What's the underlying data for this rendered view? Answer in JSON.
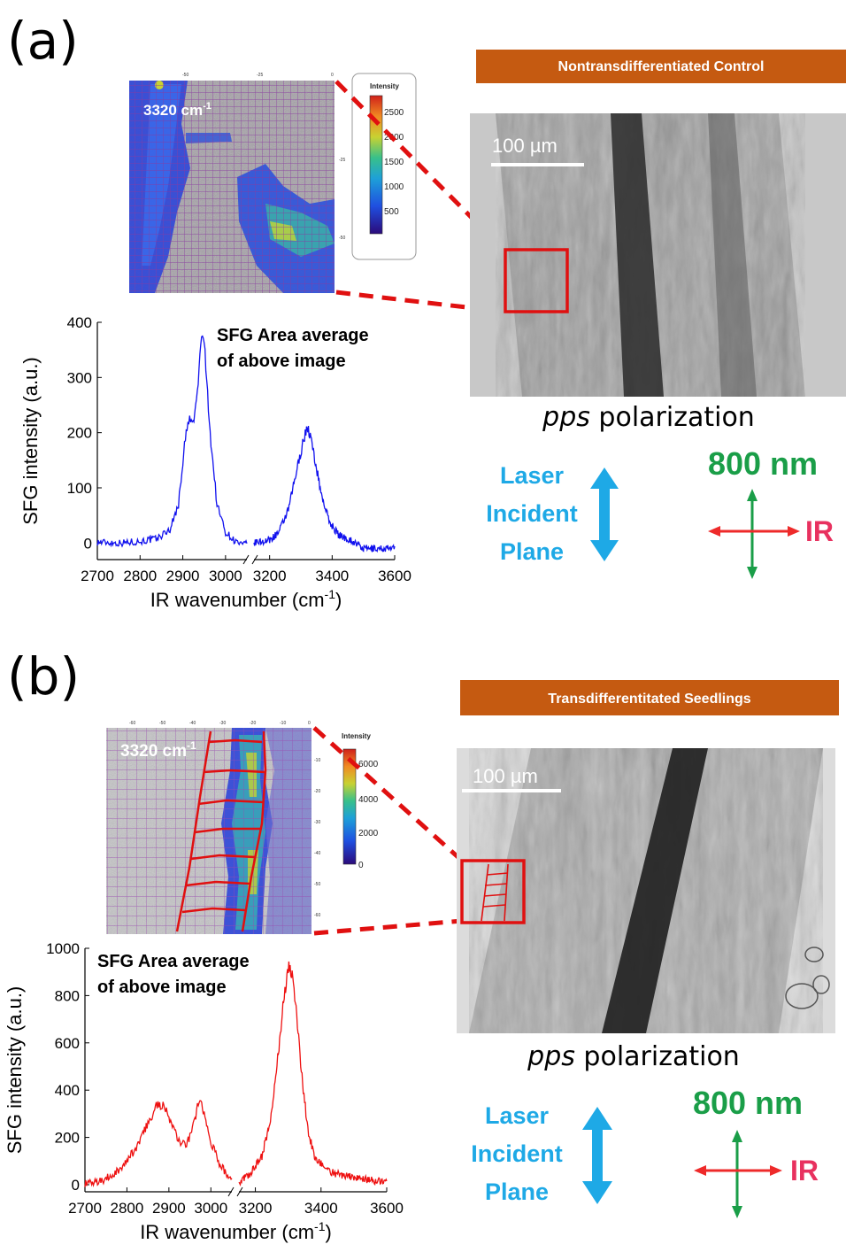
{
  "colors": {
    "blue_trace": "#1010ee",
    "red_trace": "#ee1010",
    "banner": "#c55a11",
    "cyan": "#1ea9e6",
    "green": "#1a9e48",
    "ir_red": "#ee2a2a",
    "ir_text": "#e8315f"
  },
  "panel_a": {
    "label": "(a)",
    "banner": "Nontransdifferentiated Control",
    "map_label": "3320 cm",
    "map_label_sup": "-1",
    "colorbar_title": "Intensity",
    "colorbar_ticks": [
      "2500",
      "2000",
      "1500",
      "1000",
      "500"
    ],
    "map_top_ticks": [
      "-50",
      "-25",
      "0"
    ],
    "map_right_ticks": [
      "-25",
      "-50"
    ],
    "scale_bar": "100 µm",
    "polarization_italic": "pps",
    "polarization_rest": " polarization",
    "laser_lines": [
      "Laser",
      "Incident",
      "Plane"
    ],
    "beam_label": "800 nm",
    "ir_label": "IR",
    "chart_annotation": [
      "SFG Area average",
      "of above image"
    ]
  },
  "panel_b": {
    "label": "(b)",
    "banner": "Transdifferentitated  Seedlings",
    "map_label": "3320 cm",
    "map_label_sup": "-1",
    "colorbar_title": "Intensity",
    "colorbar_ticks": [
      "6000",
      "4000",
      "2000",
      "0"
    ],
    "map_top_ticks": [
      "-60",
      "-50",
      "-40",
      "-30",
      "-20",
      "-10",
      "0"
    ],
    "map_right_ticks": [
      "-10",
      "-20",
      "-30",
      "-40",
      "-50",
      "-60"
    ],
    "scale_bar": "100 µm",
    "polarization_italic": "pps",
    "polarization_rest": " polarization",
    "laser_lines": [
      "Laser",
      "Incident",
      "Plane"
    ],
    "beam_label": "800 nm",
    "ir_label": "IR",
    "chart_annotation": [
      "SFG Area average",
      "of above image"
    ]
  },
  "chart_data": [
    {
      "type": "line",
      "panel": "a",
      "xlabel": "IR wavenumber (cm",
      "xlabel_sup": "-1",
      "xlabel_tail": ")",
      "ylabel": "SFG intensity (a.u.)",
      "x_break": [
        3050,
        3150
      ],
      "xlim": [
        2700,
        3600
      ],
      "ylim": [
        -30,
        400
      ],
      "x_ticks": [
        "2700",
        "2800",
        "2900",
        "3000",
        "3200",
        "3400",
        "3600"
      ],
      "y_ticks": [
        "0",
        "100",
        "200",
        "300",
        "400"
      ],
      "series": [
        {
          "color": "#1010ee",
          "points": [
            [
              2700,
              2
            ],
            [
              2750,
              0
            ],
            [
              2800,
              3
            ],
            [
              2840,
              8
            ],
            [
              2870,
              25
            ],
            [
              2890,
              70
            ],
            [
              2905,
              185
            ],
            [
              2915,
              225
            ],
            [
              2925,
              215
            ],
            [
              2935,
              280
            ],
            [
              2945,
              390
            ],
            [
              2952,
              340
            ],
            [
              2965,
              190
            ],
            [
              2980,
              70
            ],
            [
              3000,
              20
            ],
            [
              3020,
              5
            ],
            [
              3040,
              -5
            ],
            [
              3050,
              0
            ],
            [
              3150,
              0
            ],
            [
              3200,
              5
            ],
            [
              3230,
              20
            ],
            [
              3260,
              60
            ],
            [
              3290,
              140
            ],
            [
              3310,
              190
            ],
            [
              3320,
              210
            ],
            [
              3330,
              195
            ],
            [
              3345,
              150
            ],
            [
              3365,
              90
            ],
            [
              3390,
              40
            ],
            [
              3420,
              15
            ],
            [
              3460,
              5
            ],
            [
              3500,
              -10
            ],
            [
              3550,
              -10
            ],
            [
              3600,
              -10
            ]
          ]
        }
      ]
    },
    {
      "type": "line",
      "panel": "b",
      "xlabel": "IR wavenumber (cm",
      "xlabel_sup": "-1",
      "xlabel_tail": ")",
      "ylabel": "SFG intensity (a.u.)",
      "x_break": [
        3050,
        3150
      ],
      "xlim": [
        2700,
        3600
      ],
      "ylim": [
        -30,
        1000
      ],
      "x_ticks": [
        "2700",
        "2800",
        "2900",
        "3000",
        "3200",
        "3400",
        "3600"
      ],
      "y_ticks": [
        "0",
        "200",
        "400",
        "600",
        "800",
        "1000"
      ],
      "series": [
        {
          "color": "#ee1010",
          "points": [
            [
              2700,
              5
            ],
            [
              2740,
              15
            ],
            [
              2780,
              60
            ],
            [
              2820,
              150
            ],
            [
              2850,
              260
            ],
            [
              2870,
              330
            ],
            [
              2885,
              340
            ],
            [
              2900,
              290
            ],
            [
              2915,
              220
            ],
            [
              2930,
              170
            ],
            [
              2945,
              180
            ],
            [
              2960,
              260
            ],
            [
              2972,
              360
            ],
            [
              2985,
              300
            ],
            [
              3000,
              180
            ],
            [
              3020,
              90
            ],
            [
              3040,
              40
            ],
            [
              3050,
              20
            ],
            [
              3150,
              10
            ],
            [
              3180,
              40
            ],
            [
              3220,
              120
            ],
            [
              3250,
              300
            ],
            [
              3270,
              560
            ],
            [
              3285,
              760
            ],
            [
              3300,
              920
            ],
            [
              3312,
              890
            ],
            [
              3325,
              740
            ],
            [
              3340,
              480
            ],
            [
              3360,
              230
            ],
            [
              3380,
              120
            ],
            [
              3420,
              60
            ],
            [
              3460,
              40
            ],
            [
              3500,
              30
            ],
            [
              3550,
              20
            ],
            [
              3600,
              10
            ]
          ]
        }
      ]
    }
  ]
}
